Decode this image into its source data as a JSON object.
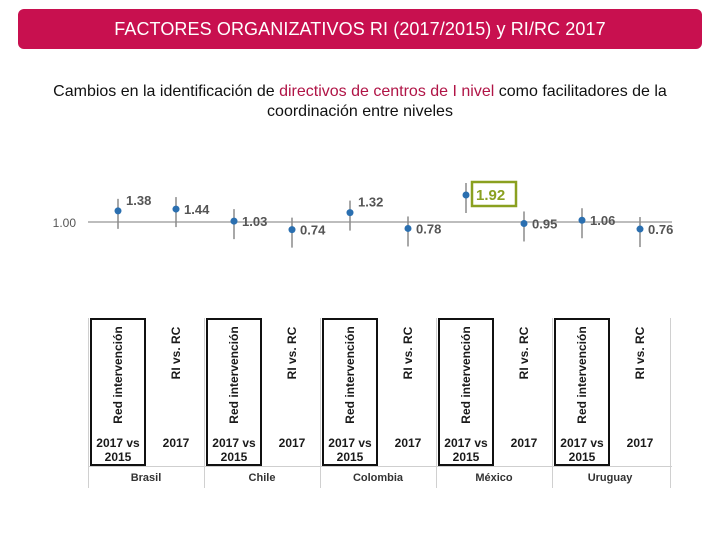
{
  "header": {
    "title": "FACTORES ORGANIZATIVOS RI (2017/2015) y RI/RC 2017"
  },
  "subtitle": {
    "part1": "Cambios en la identificación de ",
    "highlight": "directivos de centros de I nivel",
    "part2": " como facilitadores de la coordinación entre niveles"
  },
  "colors": {
    "banner": "#c8104f",
    "point": "#2a6fb0",
    "highlight_box": "#8aa020",
    "highlight_text": "#8aa020"
  },
  "chart_data": {
    "type": "scatter",
    "reference": {
      "value": 1.0,
      "label": "1.00"
    },
    "groups": [
      "Brasil",
      "Chile",
      "Colombia",
      "México",
      "Uruguay"
    ],
    "series": [
      {
        "name": "Red intervención",
        "sub": "2017 vs 2015",
        "values": [
          1.38,
          1.03,
          1.32,
          1.92,
          1.06
        ]
      },
      {
        "name": "RI vs. RC",
        "sub": "2017",
        "values": [
          1.44,
          0.74,
          0.78,
          0.95,
          0.76
        ]
      }
    ],
    "labels": [
      "1.38",
      "1.44",
      "1.03",
      "0.74",
      "1.32",
      "0.78",
      "1.92",
      "0.95",
      "1.06",
      "0.76"
    ],
    "highlight": "1.92"
  },
  "axis": {
    "col1_label": "Red intervención",
    "col2_label": "RI vs. RC",
    "col1_year_line1": "2017 vs",
    "col1_year_line2": "2015",
    "col2_year": "2017"
  }
}
